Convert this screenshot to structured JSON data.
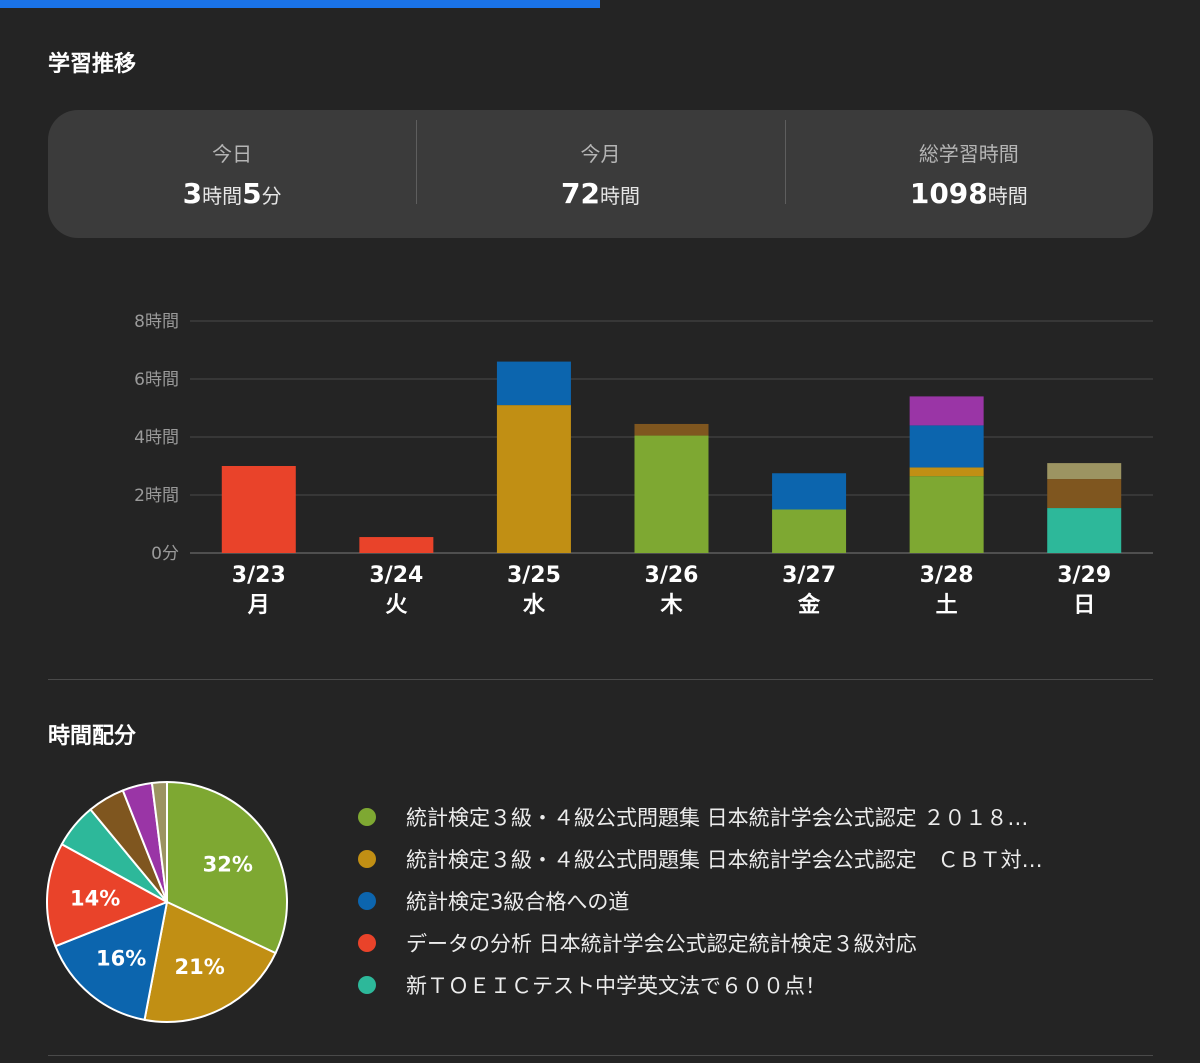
{
  "header": {
    "trend_title": "学習推移",
    "distribution_title": "時間配分"
  },
  "summary": {
    "today": {
      "label": "今日",
      "hours": "3",
      "hours_unit": "時間",
      "minutes": "5",
      "minutes_unit": "分"
    },
    "month": {
      "label": "今月",
      "hours": "72",
      "hours_unit": "時間"
    },
    "total": {
      "label": "総学習時間",
      "hours": "1098",
      "hours_unit": "時間"
    }
  },
  "colors": {
    "progress_bar": "#1a73e8",
    "stat3_4_2018": "#7ea832",
    "stat3_4_cbt": "#c18f14",
    "stat3_road": "#0c65ae",
    "data_analysis": "#e9432a",
    "toeic": "#2db89a",
    "brown": "#7f561f",
    "purple": "#9a35a6",
    "khaki": "#9c9462"
  },
  "chart_data": [
    {
      "type": "bar",
      "stacked": true,
      "categories": [
        "3/23",
        "3/24",
        "3/25",
        "3/26",
        "3/27",
        "3/28",
        "3/29"
      ],
      "weekday_labels": [
        "月",
        "火",
        "水",
        "木",
        "金",
        "土",
        "日"
      ],
      "y_tick_labels": [
        "0分",
        "2時間",
        "4時間",
        "6時間",
        "8時間"
      ],
      "y_ticks": [
        0,
        2,
        4,
        6,
        8
      ],
      "ylim": [
        0,
        8
      ],
      "grid": true,
      "series": [
        {
          "name": "統計検定３級・４級公式問題集 日本統計学会公式認定 ２０１８…",
          "color": "#7ea832",
          "values": [
            0,
            0,
            0,
            4.05,
            1.5,
            2.65,
            0
          ]
        },
        {
          "name": "統計検定３級・４級公式問題集 日本統計学会公式認定　ＣＢＴ対…",
          "color": "#c18f14",
          "values": [
            0,
            0,
            5.1,
            0,
            0,
            0.3,
            0
          ]
        },
        {
          "name": "統計検定3級合格への道",
          "color": "#0c65ae",
          "values": [
            0,
            0,
            1.5,
            0,
            1.25,
            1.45,
            0
          ]
        },
        {
          "name": "データの分析 日本統計学会公式認定統計検定３級対応",
          "color": "#e9432a",
          "values": [
            3.0,
            0.55,
            0,
            0,
            0,
            0,
            0
          ]
        },
        {
          "name": "新ＴＯＥＩＣテスト中学英文法で６００点！",
          "color": "#2db89a",
          "values": [
            0,
            0,
            0,
            0,
            0,
            0,
            1.55
          ]
        },
        {
          "color": "#7f561f",
          "values": [
            0,
            0,
            0,
            0.4,
            0,
            0,
            1.0
          ]
        },
        {
          "color": "#9a35a6",
          "values": [
            0,
            0,
            0,
            0,
            0,
            1.0,
            0
          ]
        },
        {
          "color": "#9c9462",
          "values": [
            0,
            0,
            0,
            0,
            0,
            0,
            0.55
          ]
        }
      ]
    },
    {
      "type": "pie",
      "slices": [
        {
          "name": "統計検定３級・４級公式問題集 日本統計学会公式認定 ２０１８…",
          "value": 32,
          "label": "32%",
          "color": "#7ea832"
        },
        {
          "name": "統計検定３級・４級公式問題集 日本統計学会公式認定　ＣＢＴ対…",
          "value": 21,
          "label": "21%",
          "color": "#c18f14"
        },
        {
          "name": "統計検定3級合格への道",
          "value": 16,
          "label": "16%",
          "color": "#0c65ae"
        },
        {
          "name": "データの分析 日本統計学会公式認定統計検定３級対応",
          "value": 14,
          "label": "14%",
          "color": "#e9432a"
        },
        {
          "name": "新ＴＯＥＩＣテスト中学英文法で６００点！",
          "value": 6,
          "color": "#2db89a"
        },
        {
          "value": 5,
          "color": "#7f561f"
        },
        {
          "value": 4,
          "color": "#9a35a6"
        },
        {
          "value": 2,
          "color": "#9c9462"
        }
      ]
    }
  ]
}
